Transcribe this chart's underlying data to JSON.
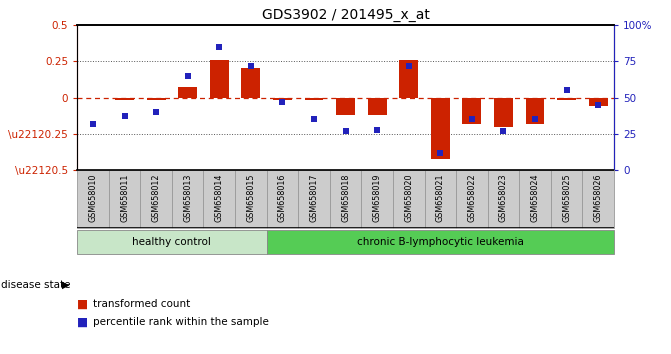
{
  "title": "GDS3902 / 201495_x_at",
  "samples": [
    "GSM658010",
    "GSM658011",
    "GSM658012",
    "GSM658013",
    "GSM658014",
    "GSM658015",
    "GSM658016",
    "GSM658017",
    "GSM658018",
    "GSM658019",
    "GSM658020",
    "GSM658021",
    "GSM658022",
    "GSM658023",
    "GSM658024",
    "GSM658025",
    "GSM658026"
  ],
  "red_bars": [
    0.0,
    -0.02,
    -0.02,
    0.07,
    0.26,
    0.2,
    -0.02,
    -0.02,
    -0.12,
    -0.12,
    0.26,
    -0.42,
    -0.18,
    -0.2,
    -0.18,
    -0.02,
    -0.06
  ],
  "blue_pct": [
    32,
    37,
    40,
    65,
    85,
    72,
    47,
    35,
    27,
    28,
    72,
    12,
    35,
    27,
    35,
    55,
    45
  ],
  "ylim_left": [
    -0.5,
    0.5
  ],
  "ylim_right": [
    0,
    100
  ],
  "left_yticks": [
    -0.5,
    -0.25,
    0.0,
    0.25,
    0.5
  ],
  "right_yticks": [
    0,
    25,
    50,
    75,
    100
  ],
  "healthy_count": 6,
  "disease_state_label": "disease state",
  "group1_label": "healthy control",
  "group2_label": "chronic B-lymphocytic leukemia",
  "legend_red": "transformed count",
  "legend_blue": "percentile rank within the sample",
  "healthy_color": "#c8e6c8",
  "leukemia_color": "#55cc55",
  "bar_color": "#cc2200",
  "square_color": "#2222bb",
  "zero_line_color": "#cc2200",
  "bg_color": "#ffffff",
  "tick_label_bg": "#cccccc",
  "left_ytick_labels": [
    "\\u22120.5",
    "\\u22120.25",
    "0",
    "0.25",
    "0.5"
  ],
  "right_ytick_labels": [
    "0",
    "25",
    "50",
    "75",
    "100%"
  ]
}
